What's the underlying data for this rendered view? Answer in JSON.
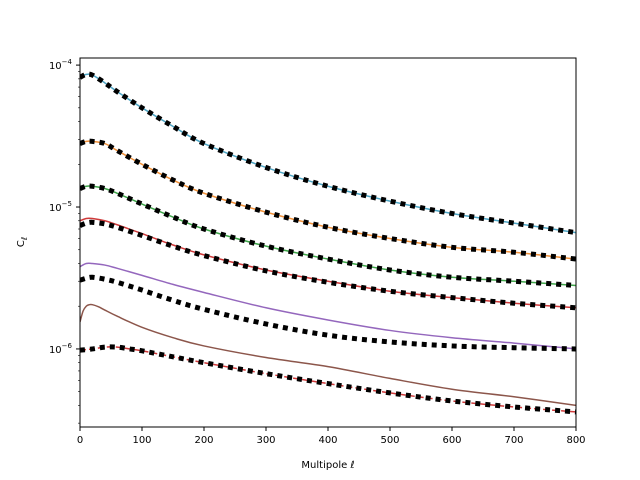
{
  "chart_data": {
    "type": "line",
    "xlabel": "Multipole ℓ",
    "ylabel": "C_ℓ",
    "xlim": [
      0,
      800
    ],
    "ylim_log10": [
      -6.55,
      -3.95
    ],
    "log_scale_y": true,
    "grid": false,
    "x_ticks": [
      0,
      100,
      200,
      300,
      400,
      500,
      600,
      700,
      800
    ],
    "y_major_ticks": [
      {
        "exp": -6,
        "label_base": "10",
        "label_exp": "−6"
      },
      {
        "exp": -5,
        "label_base": "10",
        "label_exp": "−5"
      },
      {
        "exp": -4,
        "label_base": "10",
        "label_exp": "−4"
      }
    ],
    "colors": {
      "blue": "#4ea5c4",
      "orange": "#f0913b",
      "green": "#3fa54a",
      "red": "#cf3a3a",
      "purple": "#9467bd",
      "brown": "#8c564b",
      "dotted": "#000000"
    },
    "series": [
      {
        "color": "blue",
        "style": "solid",
        "x": [
          0,
          10,
          20,
          40,
          60,
          100,
          150,
          200,
          300,
          400,
          500,
          600,
          700,
          800
        ],
        "y": [
          8.2e-05,
          8.6e-05,
          8.5e-05,
          7.5e-05,
          6.5e-05,
          5e-05,
          3.7e-05,
          2.8e-05,
          1.9e-05,
          1.4e-05,
          1.1e-05,
          9e-06,
          7.7e-06,
          6.6e-06
        ]
      },
      {
        "color": "orange",
        "style": "solid",
        "x": [
          0,
          10,
          20,
          40,
          60,
          100,
          150,
          200,
          300,
          400,
          500,
          600,
          700,
          800
        ],
        "y": [
          2.8e-05,
          2.9e-05,
          2.9e-05,
          2.8e-05,
          2.5e-05,
          2e-05,
          1.55e-05,
          1.25e-05,
          9.2e-06,
          7.2e-06,
          6e-06,
          5.2e-06,
          4.8e-06,
          4.3e-06
        ]
      },
      {
        "color": "green",
        "style": "solid",
        "x": [
          0,
          10,
          20,
          40,
          60,
          100,
          150,
          200,
          300,
          400,
          500,
          600,
          700,
          800
        ],
        "y": [
          1.35e-05,
          1.4e-05,
          1.4e-05,
          1.35e-05,
          1.25e-05,
          1.05e-05,
          8.5e-06,
          7e-06,
          5.3e-06,
          4.3e-06,
          3.6e-06,
          3.2e-06,
          3e-06,
          2.8e-06
        ]
      },
      {
        "color": "red",
        "style": "solid",
        "x": [
          0,
          10,
          20,
          40,
          60,
          100,
          150,
          200,
          300,
          400,
          500,
          600,
          700,
          800
        ],
        "y": [
          8e-06,
          8.3e-06,
          8.3e-06,
          8e-06,
          7.5e-06,
          6.5e-06,
          5.4e-06,
          4.6e-06,
          3.6e-06,
          3e-06,
          2.55e-06,
          2.3e-06,
          2.1e-06,
          1.95e-06
        ]
      },
      {
        "color": "purple",
        "style": "solid",
        "x": [
          0,
          10,
          20,
          40,
          60,
          100,
          150,
          200,
          300,
          400,
          500,
          600,
          700,
          800
        ],
        "y": [
          3.8e-06,
          4e-06,
          4e-06,
          3.9e-06,
          3.7e-06,
          3.3e-06,
          2.85e-06,
          2.5e-06,
          1.95e-06,
          1.6e-06,
          1.35e-06,
          1.2e-06,
          1.1e-06,
          1e-06
        ]
      },
      {
        "color": "brown",
        "style": "solid",
        "x": [
          0,
          5,
          10,
          15,
          20,
          30,
          40,
          60,
          100,
          150,
          200,
          300,
          400,
          500,
          600,
          700,
          800
        ],
        "y": [
          1.55e-06,
          1.85e-06,
          2e-06,
          2.05e-06,
          2.05e-06,
          1.98e-06,
          1.88e-06,
          1.7e-06,
          1.42e-06,
          1.2e-06,
          1.05e-06,
          8.7e-07,
          7.5e-07,
          6.2e-07,
          5.2e-07,
          4.6e-07,
          4e-07
        ]
      },
      {
        "color": "red",
        "style": "dashed",
        "x": [
          0,
          20,
          40,
          60,
          80,
          100,
          150,
          200,
          300,
          400,
          500,
          600,
          700,
          800
        ],
        "y": [
          9.8e-07,
          1e-06,
          1.03e-06,
          1.03e-06,
          1e-06,
          9.7e-07,
          8.8e-07,
          8e-07,
          6.7e-07,
          5.7e-07,
          4.9e-07,
          4.3e-07,
          3.9e-07,
          3.6e-07
        ]
      },
      {
        "color": "dotted",
        "style": "dotted",
        "x": [
          0,
          10,
          20,
          40,
          60,
          100,
          150,
          200,
          300,
          400,
          500,
          600,
          700,
          800
        ],
        "y": [
          8.2e-05,
          8.6e-05,
          8.5e-05,
          7.5e-05,
          6.5e-05,
          5e-05,
          3.7e-05,
          2.8e-05,
          1.9e-05,
          1.4e-05,
          1.1e-05,
          9e-06,
          7.7e-06,
          6.6e-06
        ]
      },
      {
        "color": "dotted",
        "style": "dotted",
        "x": [
          0,
          10,
          20,
          40,
          60,
          100,
          150,
          200,
          300,
          400,
          500,
          600,
          700,
          800
        ],
        "y": [
          2.8e-05,
          2.9e-05,
          2.9e-05,
          2.8e-05,
          2.5e-05,
          2e-05,
          1.55e-05,
          1.25e-05,
          9.2e-06,
          7.2e-06,
          6e-06,
          5.2e-06,
          4.8e-06,
          4.3e-06
        ]
      },
      {
        "color": "dotted",
        "style": "dotted",
        "x": [
          0,
          10,
          20,
          40,
          60,
          100,
          150,
          200,
          300,
          400,
          500,
          600,
          700,
          800
        ],
        "y": [
          1.35e-05,
          1.4e-05,
          1.4e-05,
          1.35e-05,
          1.25e-05,
          1.05e-05,
          8.5e-06,
          7e-06,
          5.3e-06,
          4.3e-06,
          3.6e-06,
          3.2e-06,
          3e-06,
          2.8e-06
        ]
      },
      {
        "color": "dotted",
        "style": "dotted",
        "x": [
          0,
          10,
          20,
          40,
          60,
          100,
          150,
          200,
          300,
          400,
          500,
          600,
          700,
          800
        ],
        "y": [
          7.4e-06,
          7.7e-06,
          7.8e-06,
          7.6e-06,
          7.2e-06,
          6.3e-06,
          5.3e-06,
          4.55e-06,
          3.55e-06,
          2.95e-06,
          2.55e-06,
          2.3e-06,
          2.1e-06,
          1.95e-06
        ]
      },
      {
        "color": "dotted",
        "style": "dotted",
        "x": [
          0,
          10,
          20,
          40,
          60,
          100,
          150,
          200,
          300,
          400,
          500,
          600,
          700,
          800
        ],
        "y": [
          3.05e-06,
          3.15e-06,
          3.2e-06,
          3.1e-06,
          2.95e-06,
          2.6e-06,
          2.2e-06,
          1.9e-06,
          1.5e-06,
          1.25e-06,
          1.12e-06,
          1.05e-06,
          1.02e-06,
          1e-06
        ]
      },
      {
        "color": "dotted",
        "style": "dotted",
        "x": [
          0,
          20,
          40,
          60,
          80,
          100,
          150,
          200,
          300,
          400,
          500,
          600,
          700,
          800
        ],
        "y": [
          9.8e-07,
          1e-06,
          1.03e-06,
          1.03e-06,
          1e-06,
          9.7e-07,
          8.8e-07,
          8e-07,
          6.7e-07,
          5.7e-07,
          4.9e-07,
          4.3e-07,
          3.9e-07,
          3.6e-07
        ]
      }
    ]
  }
}
